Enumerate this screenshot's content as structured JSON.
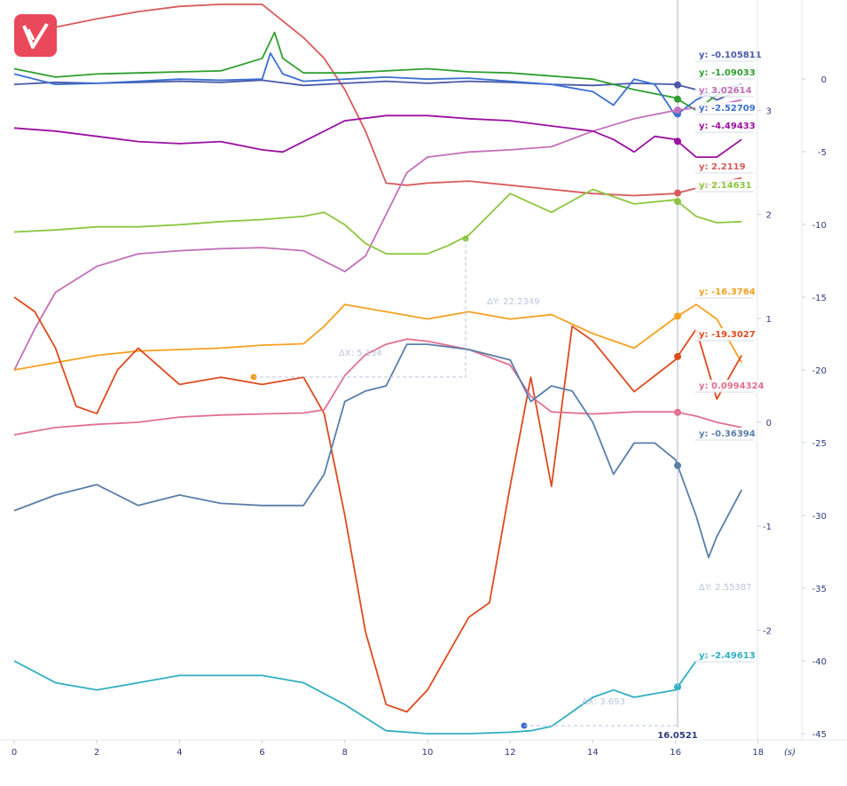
{
  "logo": {
    "name": "brand-logo",
    "color": "#e9495b"
  },
  "x_axis": {
    "unit": "(s)",
    "ticks": [
      "0",
      "2",
      "4",
      "6",
      "8",
      "10",
      "12",
      "14",
      "16",
      "18"
    ]
  },
  "y_axis_inner": {
    "ticks": [
      "3",
      "2",
      "1",
      "0",
      "-1",
      "-2"
    ]
  },
  "y_axis_outer": {
    "ticks": [
      "0",
      "-5",
      "-10",
      "-15",
      "-20",
      "-25",
      "-30",
      "-35",
      "-40",
      "-45"
    ]
  },
  "cursor": {
    "x_label": "16.0521"
  },
  "cursor_values": [
    {
      "label": "y: -0.105811",
      "color": "#4a5aa8"
    },
    {
      "label": "y: -1.09033",
      "color": "#2e9e2e"
    },
    {
      "label": "y: 3.02614",
      "color": "#c070b8"
    },
    {
      "label": "y: -2.52709",
      "color": "#3a6fd0"
    },
    {
      "label": "y: -4.49433",
      "color": "#9a10a0"
    },
    {
      "label": "y: 2.2119",
      "color": "#d85a5a"
    },
    {
      "label": "y: 2.14631",
      "color": "#8cc640"
    },
    {
      "label": "y: -16.3764",
      "color": "#f5a020"
    },
    {
      "label": "y: -19.3027",
      "color": "#dd4a20"
    },
    {
      "label": "y: 0.0994324",
      "color": "#e07090"
    },
    {
      "label": "y: -0.36394",
      "color": "#5a7ea8"
    },
    {
      "label": "y: -2.49613",
      "color": "#30aec0"
    }
  ],
  "measurements": [
    {
      "dx": "ΔX: 5.134",
      "dy": "ΔY: 22.2349"
    },
    {
      "dx": "ΔX: 3.693",
      "dy": "ΔY: 2.55387"
    }
  ],
  "chart_data": {
    "type": "line",
    "x_unit": "(s)",
    "xlim": [
      0,
      18
    ],
    "ylim_inner": [
      -2.9,
      4
    ],
    "ylim_outer": [
      -45,
      5
    ],
    "series": [
      {
        "color": "#d85a5a",
        "axis": "inner",
        "x": [
          0,
          1,
          2,
          3,
          4,
          5,
          6,
          7,
          7.5,
          8,
          8.5,
          9,
          9.5,
          10,
          11,
          12,
          13,
          14,
          15,
          16,
          16.5,
          17,
          17.6
        ],
        "y": [
          3.6,
          3.8,
          3.88,
          3.95,
          4.0,
          4.02,
          4.02,
          3.7,
          3.5,
          3.2,
          2.8,
          2.3,
          2.28,
          2.3,
          2.32,
          2.28,
          2.24,
          2.2,
          2.18,
          2.2,
          2.25,
          2.3,
          2.35
        ]
      },
      {
        "color": "#4a5aa8",
        "axis": "inner",
        "x": [
          0,
          1,
          2,
          3,
          4,
          5,
          6,
          7,
          8,
          9,
          10,
          11,
          12,
          13,
          14,
          15,
          16,
          16.5,
          17,
          17.6
        ],
        "y": [
          3.25,
          3.27,
          3.26,
          3.27,
          3.28,
          3.27,
          3.29,
          3.24,
          3.26,
          3.28,
          3.26,
          3.28,
          3.27,
          3.25,
          3.24,
          3.26,
          3.25,
          3.2,
          3.1,
          3.2
        ]
      },
      {
        "color": "#2e9e2e",
        "axis": "inner",
        "x": [
          0,
          1,
          2,
          3,
          4,
          5,
          6,
          6.3,
          6.5,
          7,
          8,
          9,
          10,
          11,
          12,
          13,
          14,
          15,
          16,
          16.5,
          17,
          17.6
        ],
        "y": [
          3.4,
          3.32,
          3.35,
          3.36,
          3.37,
          3.38,
          3.5,
          3.75,
          3.5,
          3.36,
          3.36,
          3.38,
          3.4,
          3.37,
          3.36,
          3.33,
          3.3,
          3.2,
          3.12,
          3.0,
          3.15,
          3.2
        ]
      },
      {
        "color": "#3a6fd0",
        "axis": "inner",
        "x": [
          0,
          1,
          2,
          3,
          4,
          5,
          6,
          6.2,
          6.5,
          7,
          8,
          9,
          10,
          11,
          12,
          13,
          14,
          14.5,
          15,
          15.5,
          16,
          16.5,
          17,
          17.6
        ],
        "y": [
          3.35,
          3.25,
          3.26,
          3.28,
          3.3,
          3.29,
          3.3,
          3.55,
          3.35,
          3.28,
          3.3,
          3.32,
          3.3,
          3.31,
          3.28,
          3.25,
          3.18,
          3.05,
          3.3,
          3.25,
          2.95,
          3.1,
          3.2,
          3.25
        ]
      },
      {
        "color": "#c070b8",
        "axis": "inner",
        "x": [
          0,
          0.5,
          1,
          2,
          3,
          4,
          5,
          6,
          7,
          7.5,
          8,
          8.5,
          9,
          9.5,
          10,
          11,
          12,
          13,
          14,
          15,
          16,
          17,
          17.6
        ],
        "y": [
          0.5,
          0.9,
          1.25,
          1.5,
          1.62,
          1.65,
          1.67,
          1.68,
          1.65,
          1.55,
          1.45,
          1.6,
          2.0,
          2.4,
          2.55,
          2.6,
          2.62,
          2.65,
          2.8,
          2.92,
          3.0,
          3.05,
          3.1
        ]
      },
      {
        "color": "#9a10a0",
        "axis": "inner",
        "x": [
          0,
          1,
          2,
          3,
          4,
          5,
          6,
          6.5,
          7,
          8,
          9,
          10,
          11,
          12,
          13,
          14,
          14.5,
          15,
          15.5,
          16,
          16.5,
          17,
          17.6
        ],
        "y": [
          2.83,
          2.8,
          2.75,
          2.7,
          2.68,
          2.7,
          2.62,
          2.6,
          2.7,
          2.9,
          2.95,
          2.95,
          2.92,
          2.9,
          2.85,
          2.8,
          2.72,
          2.6,
          2.75,
          2.72,
          2.55,
          2.55,
          2.72
        ]
      },
      {
        "color": "#8cc640",
        "axis": "inner",
        "x": [
          0,
          1,
          2,
          3,
          4,
          5,
          6,
          7,
          7.5,
          8,
          8.5,
          9,
          10,
          10.5,
          11,
          12,
          13,
          14,
          15,
          16,
          16.5,
          17,
          17.6
        ],
        "y": [
          1.83,
          1.85,
          1.88,
          1.88,
          1.9,
          1.93,
          1.95,
          1.98,
          2.02,
          1.9,
          1.72,
          1.62,
          1.62,
          1.7,
          1.8,
          2.2,
          2.02,
          2.24,
          2.1,
          2.14,
          1.98,
          1.92,
          1.93
        ]
      },
      {
        "color": "#f5a020",
        "axis": "outer",
        "x": [
          0,
          1,
          2,
          3,
          4,
          5,
          6,
          7,
          7.5,
          8,
          9,
          10,
          11,
          12,
          13,
          14,
          15,
          16,
          16.5,
          17,
          17.6
        ],
        "y": [
          -20,
          -19.5,
          -19.0,
          -18.7,
          -18.6,
          -18.5,
          -18.3,
          -18.2,
          -17.0,
          -15.5,
          -16.0,
          -16.5,
          -16.0,
          -16.5,
          -16.2,
          -17.5,
          -18.5,
          -16.4,
          -15.5,
          -16.5,
          -19.5
        ]
      },
      {
        "color": "#dd4a20",
        "axis": "outer",
        "x": [
          0,
          0.5,
          1,
          1.5,
          2,
          2.5,
          3,
          4,
          5,
          6,
          7,
          7.5,
          8,
          8.5,
          9,
          9.5,
          10,
          11,
          11.5,
          12,
          12.5,
          13,
          13.5,
          14,
          15,
          16,
          16.5,
          17,
          17.6
        ],
        "y": [
          -15,
          -16,
          -18.5,
          -22.5,
          -23,
          -20,
          -18.5,
          -21,
          -20.5,
          -21,
          -20.5,
          -23,
          -30,
          -38,
          -43,
          -43.5,
          -42,
          -37,
          -36,
          -28,
          -20.5,
          -28,
          -17,
          -18,
          -21.5,
          -19.3,
          -17.2,
          -22,
          -19
        ]
      },
      {
        "color": "#e07090",
        "axis": "inner",
        "x": [
          0,
          1,
          2,
          3,
          4,
          5,
          6,
          7,
          7.5,
          8,
          8.5,
          9,
          9.5,
          10,
          11,
          12,
          12.5,
          13,
          14,
          15,
          16,
          16.5,
          17,
          17.6
        ],
        "y": [
          -0.12,
          -0.05,
          -0.02,
          0.0,
          0.05,
          0.07,
          0.08,
          0.09,
          0.12,
          0.45,
          0.65,
          0.75,
          0.8,
          0.78,
          0.7,
          0.55,
          0.25,
          0.1,
          0.08,
          0.1,
          0.1,
          0.06,
          0.0,
          -0.05
        ]
      },
      {
        "color": "#5a7ea8",
        "axis": "inner",
        "x": [
          0,
          1,
          2,
          3,
          4,
          5,
          6,
          7,
          7.5,
          8,
          8.5,
          9,
          9.5,
          10,
          11,
          12,
          12.5,
          13,
          13.5,
          14,
          14.5,
          15,
          15.5,
          16,
          16.5,
          16.8,
          17,
          17.6
        ],
        "y": [
          -0.85,
          -0.7,
          -0.6,
          -0.8,
          -0.7,
          -0.78,
          -0.8,
          -0.8,
          -0.5,
          0.2,
          0.3,
          0.35,
          0.75,
          0.75,
          0.7,
          0.6,
          0.2,
          0.35,
          0.3,
          0.0,
          -0.5,
          -0.2,
          -0.2,
          -0.36,
          -0.9,
          -1.3,
          -1.1,
          -0.65
        ]
      },
      {
        "color": "#30aec0",
        "axis": "outer",
        "x": [
          0,
          1,
          2,
          3,
          4,
          5,
          6,
          7,
          8,
          9,
          10,
          11,
          12,
          12.5,
          13,
          14,
          14.5,
          15,
          16,
          16.5,
          17,
          17.6
        ],
        "y": [
          -40,
          -41.5,
          -42,
          -41.5,
          -41,
          -41,
          -41,
          -41.5,
          -43,
          -44.8,
          -45,
          -45,
          -44.9,
          -44.8,
          -44.5,
          -42.5,
          -42,
          -42.5,
          -42,
          -40,
          -39.5,
          -40
        ]
      }
    ]
  }
}
